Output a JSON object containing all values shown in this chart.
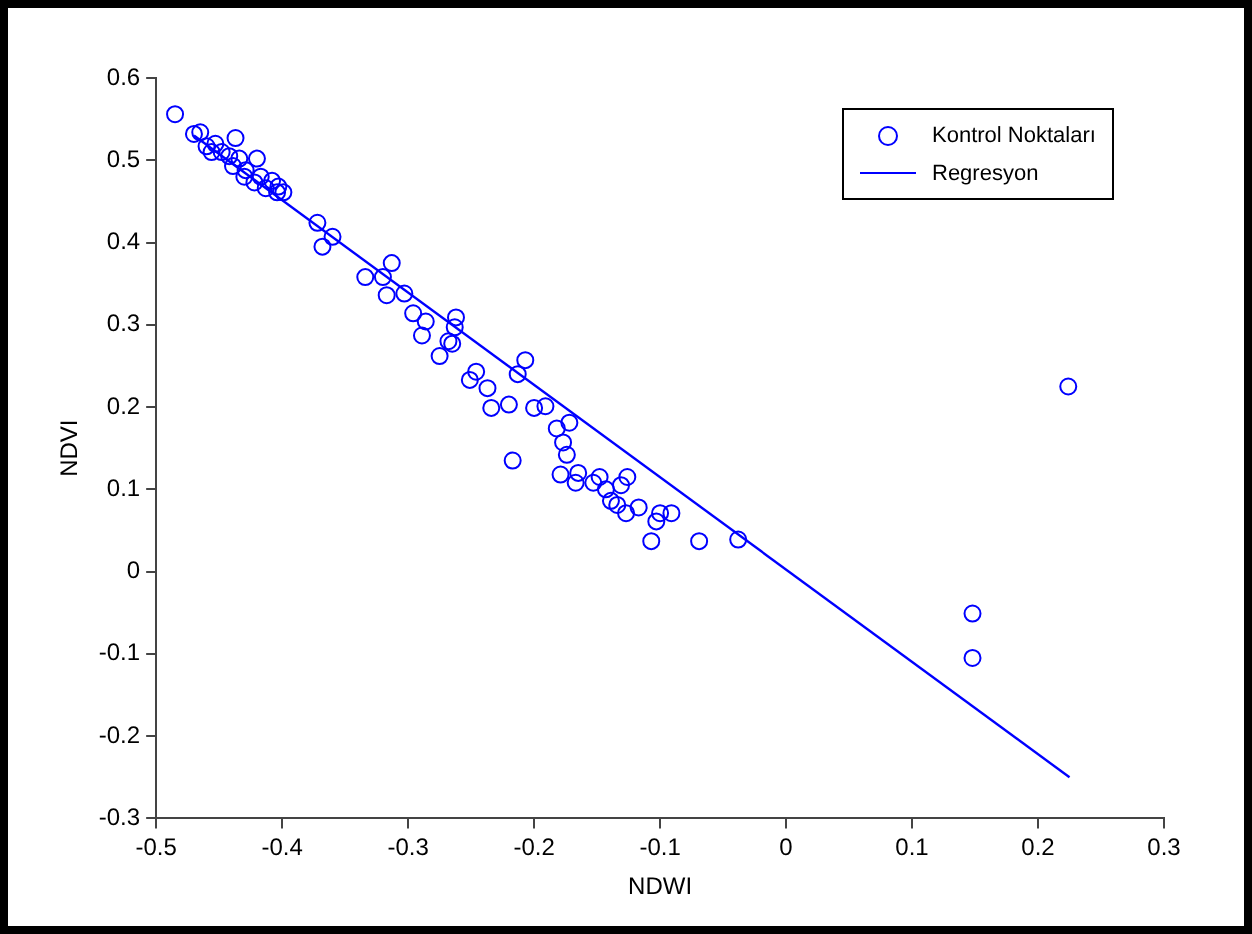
{
  "chart_data": {
    "type": "scatter",
    "xlabel": "NDWI",
    "ylabel": "NDVI",
    "xlim": [
      -0.5,
      0.3
    ],
    "ylim": [
      -0.3,
      0.6
    ],
    "xticks": [
      -0.5,
      -0.4,
      -0.3,
      -0.2,
      -0.1,
      0,
      0.1,
      0.2,
      0.3
    ],
    "yticks": [
      -0.3,
      -0.2,
      -0.1,
      0,
      0.1,
      0.2,
      0.3,
      0.4,
      0.5,
      0.6
    ],
    "grid": false,
    "legend": "top right",
    "series": [
      {
        "name": "Kontrol Noktaları",
        "type": "scatter",
        "marker": "circle",
        "color": "#0000ff",
        "x": [
          -0.485,
          -0.47,
          -0.465,
          -0.437,
          -0.453,
          -0.46,
          -0.448,
          -0.456,
          -0.442,
          -0.434,
          -0.439,
          -0.429,
          -0.417,
          -0.408,
          -0.403,
          -0.404,
          -0.413,
          -0.422,
          -0.43,
          -0.399,
          -0.42,
          -0.372,
          -0.368,
          -0.36,
          -0.334,
          -0.313,
          -0.32,
          -0.317,
          -0.303,
          -0.296,
          -0.286,
          -0.289,
          -0.275,
          -0.268,
          -0.263,
          -0.262,
          -0.265,
          -0.251,
          -0.246,
          -0.234,
          -0.237,
          -0.22,
          -0.207,
          -0.213,
          -0.2,
          -0.191,
          -0.217,
          -0.182,
          -0.177,
          -0.172,
          -0.174,
          -0.179,
          -0.167,
          -0.165,
          -0.153,
          -0.148,
          -0.143,
          -0.139,
          -0.134,
          -0.131,
          -0.126,
          -0.127,
          -0.117,
          -0.1,
          -0.091,
          -0.107,
          -0.103,
          -0.069,
          -0.038,
          0.148,
          0.148,
          0.224
        ],
        "values": [
          0.556,
          0.532,
          0.534,
          0.527,
          0.52,
          0.517,
          0.51,
          0.51,
          0.505,
          0.502,
          0.493,
          0.488,
          0.48,
          0.475,
          0.468,
          0.461,
          0.466,
          0.473,
          0.48,
          0.461,
          0.502,
          0.424,
          0.395,
          0.407,
          0.358,
          0.375,
          0.358,
          0.336,
          0.338,
          0.314,
          0.304,
          0.287,
          0.262,
          0.28,
          0.297,
          0.309,
          0.277,
          0.233,
          0.243,
          0.199,
          0.223,
          0.203,
          0.257,
          0.24,
          0.199,
          0.201,
          0.135,
          0.174,
          0.157,
          0.181,
          0.142,
          0.118,
          0.108,
          0.12,
          0.108,
          0.115,
          0.1,
          0.086,
          0.081,
          0.105,
          0.115,
          0.071,
          0.078,
          0.071,
          0.071,
          0.037,
          0.061,
          0.037,
          0.039,
          -0.105,
          -0.051,
          0.225
        ]
      },
      {
        "name": "Regresyon",
        "type": "line",
        "marker": "none",
        "line_style": "solid",
        "color": "#0000ff",
        "x": [
          -0.47,
          0.225
        ],
        "values": [
          0.53,
          -0.25
        ]
      }
    ]
  }
}
